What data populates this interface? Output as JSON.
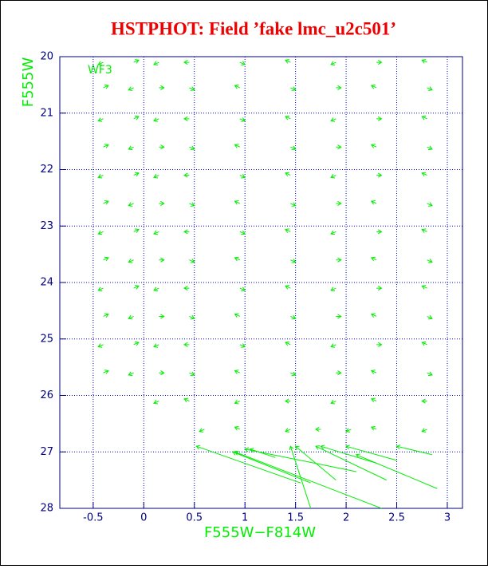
{
  "chart_data": {
    "type": "vector",
    "title": "HSTPHOT: Field ’fake lmc_u2c501’",
    "annotation": "WF3",
    "x_label": "F555W−F814W",
    "y_label": "F555W",
    "xlim": [
      -0.83,
      3.15
    ],
    "ylim": [
      20,
      28
    ],
    "y_inverted": true,
    "xticks": [
      -0.5,
      0,
      0.5,
      1,
      1.5,
      2,
      2.5,
      3
    ],
    "yticks": [
      20,
      21,
      22,
      23,
      24,
      25,
      26,
      27,
      28
    ],
    "grid": true,
    "color": "#00ee00",
    "x": [
      -0.4,
      -0.1,
      0.15,
      0.45,
      0.95,
      1.45,
      1.9,
      2.3,
      2.8,
      -0.4,
      -0.1,
      0.15,
      0.45,
      0.95,
      1.45,
      1.9,
      2.3,
      2.8,
      -0.4,
      -0.1,
      0.15,
      0.45,
      0.95,
      1.45,
      1.9,
      2.3,
      2.8,
      -0.4,
      -0.1,
      0.15,
      0.45,
      0.95,
      1.45,
      1.9,
      2.3,
      2.8,
      -0.4,
      -0.1,
      0.15,
      0.45,
      0.95,
      1.45,
      1.9,
      2.3,
      2.8,
      -0.4,
      -0.1,
      0.15,
      0.45,
      0.95,
      1.45,
      1.9,
      2.3,
      2.8,
      -0.4,
      -0.1,
      0.15,
      0.45,
      0.95,
      1.45,
      1.9,
      2.3,
      2.8,
      -0.4,
      -0.1,
      0.15,
      0.45,
      0.95,
      1.45,
      1.9,
      2.3,
      2.8,
      -0.4,
      -0.1,
      0.15,
      0.45,
      0.95,
      1.45,
      1.9,
      2.3,
      2.8,
      -0.4,
      -0.1,
      0.15,
      0.45,
      0.95,
      1.45,
      1.9,
      2.3,
      2.8,
      -0.4,
      -0.1,
      0.15,
      0.45,
      0.95,
      1.45,
      1.9,
      2.3,
      2.8,
      -0.4,
      -0.1,
      0.15,
      0.45,
      0.95,
      1.45,
      1.9,
      2.3,
      2.8,
      0.15,
      0.45,
      0.95,
      1.45,
      1.9,
      2.3,
      2.8,
      0.6,
      0.95,
      1.45,
      1.75,
      2.05,
      2.3,
      2.8,
      1.55,
      2.35,
      1.65,
      2.1,
      2.9,
      2.4,
      1.9,
      1.65,
      2.5,
      2.85,
      1.3,
      2.3
    ],
    "y": [
      20.1,
      20.1,
      20.1,
      20.1,
      20.1,
      20.1,
      20.1,
      20.1,
      20.1,
      20.55,
      20.55,
      20.55,
      20.55,
      20.55,
      20.55,
      20.55,
      20.55,
      20.55,
      21.1,
      21.1,
      21.1,
      21.1,
      21.1,
      21.1,
      21.1,
      21.1,
      21.1,
      21.6,
      21.6,
      21.6,
      21.6,
      21.6,
      21.6,
      21.6,
      21.6,
      21.6,
      22.1,
      22.1,
      22.1,
      22.1,
      22.1,
      22.1,
      22.1,
      22.1,
      22.1,
      22.6,
      22.6,
      22.6,
      22.6,
      22.6,
      22.6,
      22.6,
      22.6,
      22.6,
      23.1,
      23.1,
      23.1,
      23.1,
      23.1,
      23.1,
      23.1,
      23.1,
      23.1,
      23.6,
      23.6,
      23.6,
      23.6,
      23.6,
      23.6,
      23.6,
      23.6,
      23.6,
      24.1,
      24.1,
      24.1,
      24.1,
      24.1,
      24.1,
      24.1,
      24.1,
      24.1,
      24.6,
      24.6,
      24.6,
      24.6,
      24.6,
      24.6,
      24.6,
      24.6,
      24.6,
      25.1,
      25.1,
      25.1,
      25.1,
      25.1,
      25.1,
      25.1,
      25.1,
      25.1,
      25.6,
      25.6,
      25.6,
      25.6,
      25.6,
      25.6,
      25.6,
      25.6,
      25.6,
      26.1,
      26.1,
      26.1,
      26.1,
      26.1,
      26.1,
      26.1,
      26.6,
      26.6,
      26.6,
      26.6,
      26.6,
      26.6,
      26.6,
      27.55,
      28.0,
      27.55,
      27.35,
      27.65,
      27.5,
      27.5,
      28.0,
      27.15,
      27.05,
      27.1,
      27.2
    ],
    "x_end": [
      -0.45,
      -0.05,
      0.1,
      0.4,
      1.0,
      1.4,
      1.85,
      2.35,
      2.75,
      -0.35,
      -0.15,
      0.2,
      0.5,
      0.9,
      1.5,
      1.95,
      2.25,
      2.85,
      -0.45,
      -0.05,
      0.1,
      0.4,
      1.0,
      1.4,
      1.85,
      2.35,
      2.75,
      -0.35,
      -0.15,
      0.2,
      0.5,
      0.9,
      1.5,
      1.95,
      2.25,
      2.85,
      -0.45,
      -0.05,
      0.1,
      0.4,
      1.0,
      1.4,
      1.85,
      2.35,
      2.75,
      -0.35,
      -0.15,
      0.2,
      0.5,
      0.9,
      1.5,
      1.95,
      2.25,
      2.85,
      -0.45,
      -0.05,
      0.1,
      0.4,
      1.0,
      1.4,
      1.85,
      2.35,
      2.75,
      -0.35,
      -0.15,
      0.2,
      0.5,
      0.9,
      1.5,
      1.95,
      2.25,
      2.85,
      -0.45,
      -0.05,
      0.1,
      0.4,
      1.0,
      1.4,
      1.85,
      2.35,
      2.75,
      -0.35,
      -0.15,
      0.2,
      0.5,
      0.9,
      1.5,
      1.95,
      2.25,
      2.85,
      -0.45,
      -0.05,
      0.1,
      0.4,
      1.0,
      1.4,
      1.85,
      2.35,
      2.75,
      -0.35,
      -0.15,
      0.2,
      0.5,
      0.9,
      1.5,
      1.95,
      2.25,
      2.85,
      0.1,
      0.4,
      0.9,
      1.4,
      1.85,
      2.25,
      2.75,
      0.55,
      0.9,
      1.4,
      1.7,
      2.0,
      2.25,
      2.75,
      0.52,
      0.9,
      0.88,
      1.0,
      2.1,
      1.7,
      1.5,
      1.45,
      2.0,
      2.5,
      1.05,
      1.75
    ],
    "y_end": [
      20.14,
      20.06,
      20.14,
      20.1,
      20.14,
      20.06,
      20.14,
      20.1,
      20.06,
      20.51,
      20.59,
      20.55,
      20.59,
      20.51,
      20.59,
      20.55,
      20.51,
      20.59,
      21.14,
      21.06,
      21.14,
      21.1,
      21.14,
      21.06,
      21.14,
      21.1,
      21.06,
      21.56,
      21.64,
      21.6,
      21.64,
      21.56,
      21.64,
      21.6,
      21.56,
      21.64,
      22.14,
      22.06,
      22.14,
      22.1,
      22.14,
      22.06,
      22.14,
      22.1,
      22.06,
      22.56,
      22.64,
      22.6,
      22.64,
      22.56,
      22.64,
      22.6,
      22.56,
      22.64,
      23.14,
      23.06,
      23.14,
      23.1,
      23.14,
      23.06,
      23.14,
      23.1,
      23.06,
      23.56,
      23.64,
      23.6,
      23.64,
      23.56,
      23.64,
      23.6,
      23.56,
      23.64,
      24.14,
      24.06,
      24.14,
      24.1,
      24.14,
      24.06,
      24.14,
      24.1,
      24.06,
      24.56,
      24.64,
      24.6,
      24.64,
      24.56,
      24.64,
      24.6,
      24.56,
      24.64,
      25.14,
      25.06,
      25.14,
      25.1,
      25.14,
      25.06,
      25.14,
      25.1,
      25.06,
      25.56,
      25.64,
      25.6,
      25.64,
      25.56,
      25.64,
      25.6,
      25.56,
      25.64,
      26.14,
      26.06,
      26.14,
      26.1,
      26.14,
      26.06,
      26.1,
      26.64,
      26.56,
      26.64,
      26.6,
      26.64,
      26.56,
      26.64,
      26.9,
      27.0,
      27.0,
      26.95,
      27.05,
      26.9,
      26.9,
      26.9,
      26.9,
      26.9,
      26.95,
      26.9
    ]
  }
}
